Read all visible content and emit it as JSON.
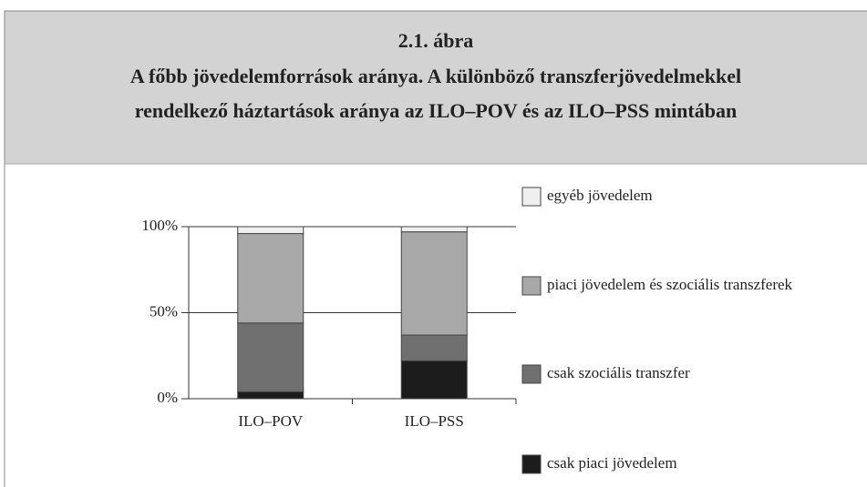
{
  "chart_data": {
    "type": "stacked_bar",
    "title": [
      "2.1. ábra",
      "A főbb jövedelemforrások aránya. A különböző transzferjövedelmekkel",
      "rendelkező háztartások aránya az ILO–POV és az ILO–PSS mintában"
    ],
    "categories": [
      "ILO–POV",
      "ILO–PSS"
    ],
    "series": [
      {
        "name": "csak piaci jövedelem",
        "color": "#1c1c1c",
        "values": [
          4,
          22
        ]
      },
      {
        "name": "csak szociális transzfer",
        "color": "#707070",
        "values": [
          40,
          15
        ]
      },
      {
        "name": "piaci jövedelem és szociális transzferek",
        "color": "#a8a8a8",
        "values": [
          52,
          60
        ]
      },
      {
        "name": "egyéb jövedelem",
        "color": "#efefef",
        "values": [
          4,
          3
        ]
      }
    ],
    "ylim": [
      0,
      100
    ],
    "yticks": [
      {
        "value": 0,
        "label": "0%"
      },
      {
        "value": 50,
        "label": "50%"
      },
      {
        "value": 100,
        "label": "100%"
      }
    ],
    "grid": true,
    "legend": "right"
  }
}
